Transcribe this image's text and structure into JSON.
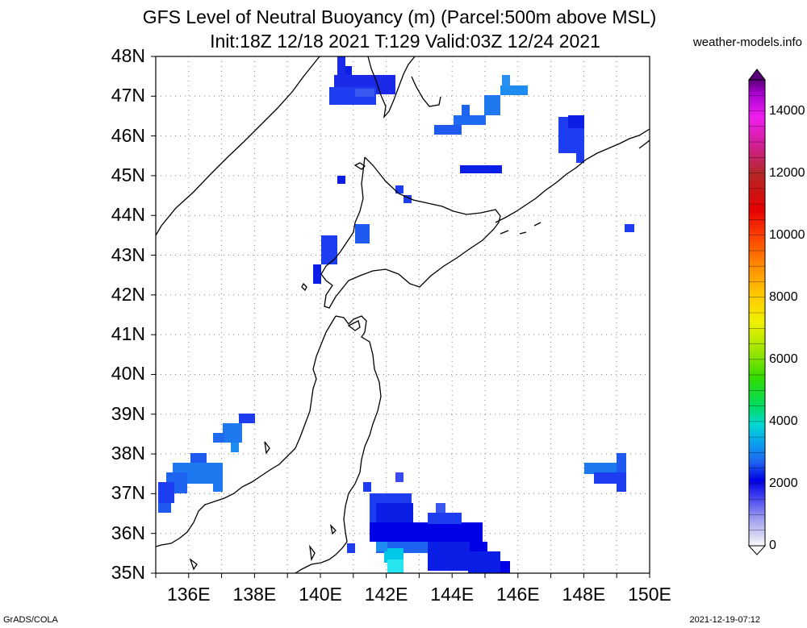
{
  "header": {
    "title_line1": "GFS Level of Neutral Buoyancy (m) (Parcel:500m above MSL)",
    "title_line2": "Init:18Z 12/18 2021 T:129 Valid:03Z 12/24 2021",
    "site": "weather-models.info"
  },
  "map": {
    "lat_labels": [
      "48N",
      "47N",
      "46N",
      "45N",
      "44N",
      "43N",
      "42N",
      "41N",
      "40N",
      "39N",
      "38N",
      "37N",
      "36N",
      "35N"
    ],
    "lon_labels": [
      "136E",
      "138E",
      "140E",
      "142E",
      "144E",
      "146E",
      "148E",
      "150E"
    ],
    "lat_range": [
      35,
      48
    ],
    "lon_range": [
      135,
      150
    ],
    "grid": "dotted",
    "coastline_color": "#000000"
  },
  "colorbar": {
    "labels": [
      "14000",
      "12000",
      "10000",
      "8000",
      "6000",
      "4000",
      "2000",
      "0"
    ],
    "range": [
      0,
      15000
    ],
    "colors": [
      "#ffffff",
      "#c8c8f0",
      "#9696f0",
      "#6464f0",
      "#3232f0",
      "#0000e6",
      "#1e3cf0",
      "#0a8cf0",
      "#00c8e6",
      "#00dca0",
      "#00dc32",
      "#64e600",
      "#c8f000",
      "#f0f000",
      "#ffd200",
      "#ffa000",
      "#ff6e00",
      "#ff3200",
      "#e60000",
      "#b42828",
      "#c81e78",
      "#e600c8",
      "#f01ef0",
      "#c800dc",
      "#9600c8",
      "#5a0078"
    ]
  },
  "footer": {
    "left": "GrADS/COLA",
    "right": "2021-12-19-07:12"
  }
}
